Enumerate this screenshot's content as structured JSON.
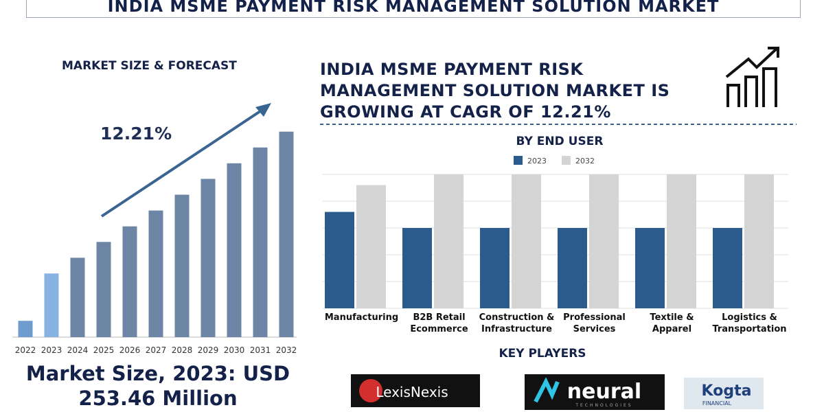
{
  "header": {
    "title": "INDIA MSME PAYMENT RISK MANAGEMENT SOLUTION MARKET"
  },
  "headline": "INDIA MSME PAYMENT RISK MANAGEMENT SOLUTION MARKET IS GROWING AT CAGR OF 12.21%",
  "chart_data": [
    {
      "type": "bar",
      "title": "MARKET SIZE & FORECAST",
      "annotation": "12.21%",
      "categories": [
        "2022",
        "2023",
        "2024",
        "2025",
        "2026",
        "2027",
        "2028",
        "2029",
        "2030",
        "2031",
        "2032"
      ],
      "values": [
        65,
        253.46,
        316,
        379,
        441,
        504,
        567,
        630,
        692,
        755,
        818
      ],
      "colors": [
        "#6f9ccf",
        "#86b3e2",
        "#6d86a5",
        "#6d86a5",
        "#6d86a5",
        "#6d86a5",
        "#6d86a5",
        "#6d86a5",
        "#6d86a5",
        "#6d86a5",
        "#6d86a5"
      ],
      "ylim": [
        0,
        850
      ]
    },
    {
      "type": "grouped_bar",
      "title": "BY END USER",
      "categories": [
        "Manufacturing",
        "B2B Retail Ecommerce",
        "Construction & Infrastructure",
        "Professional Services",
        "Textile & Apparel",
        "Logistics & Transportation"
      ],
      "series": [
        {
          "name": "2023",
          "color": "#2a5b8c",
          "values": [
            3.6,
            3,
            3,
            3,
            3,
            3
          ]
        },
        {
          "name": "2032",
          "color": "#d4d4d4",
          "values": [
            4.6,
            5,
            5,
            5,
            5,
            5
          ]
        }
      ],
      "ylim": [
        0,
        5
      ],
      "yticks": [
        0,
        1,
        2,
        3,
        4,
        5
      ],
      "grid": true,
      "legend": "top"
    }
  ],
  "market_size": "Market Size, 2023: USD 253.46 Million",
  "key_players": {
    "title": "KEY PLAYERS",
    "logos": [
      {
        "name": "LexisNexis"
      },
      {
        "name": "neural",
        "tagline": "TECHNOLOGIES"
      },
      {
        "name": "Kogta",
        "tagline": "FINANCIAL"
      }
    ]
  }
}
